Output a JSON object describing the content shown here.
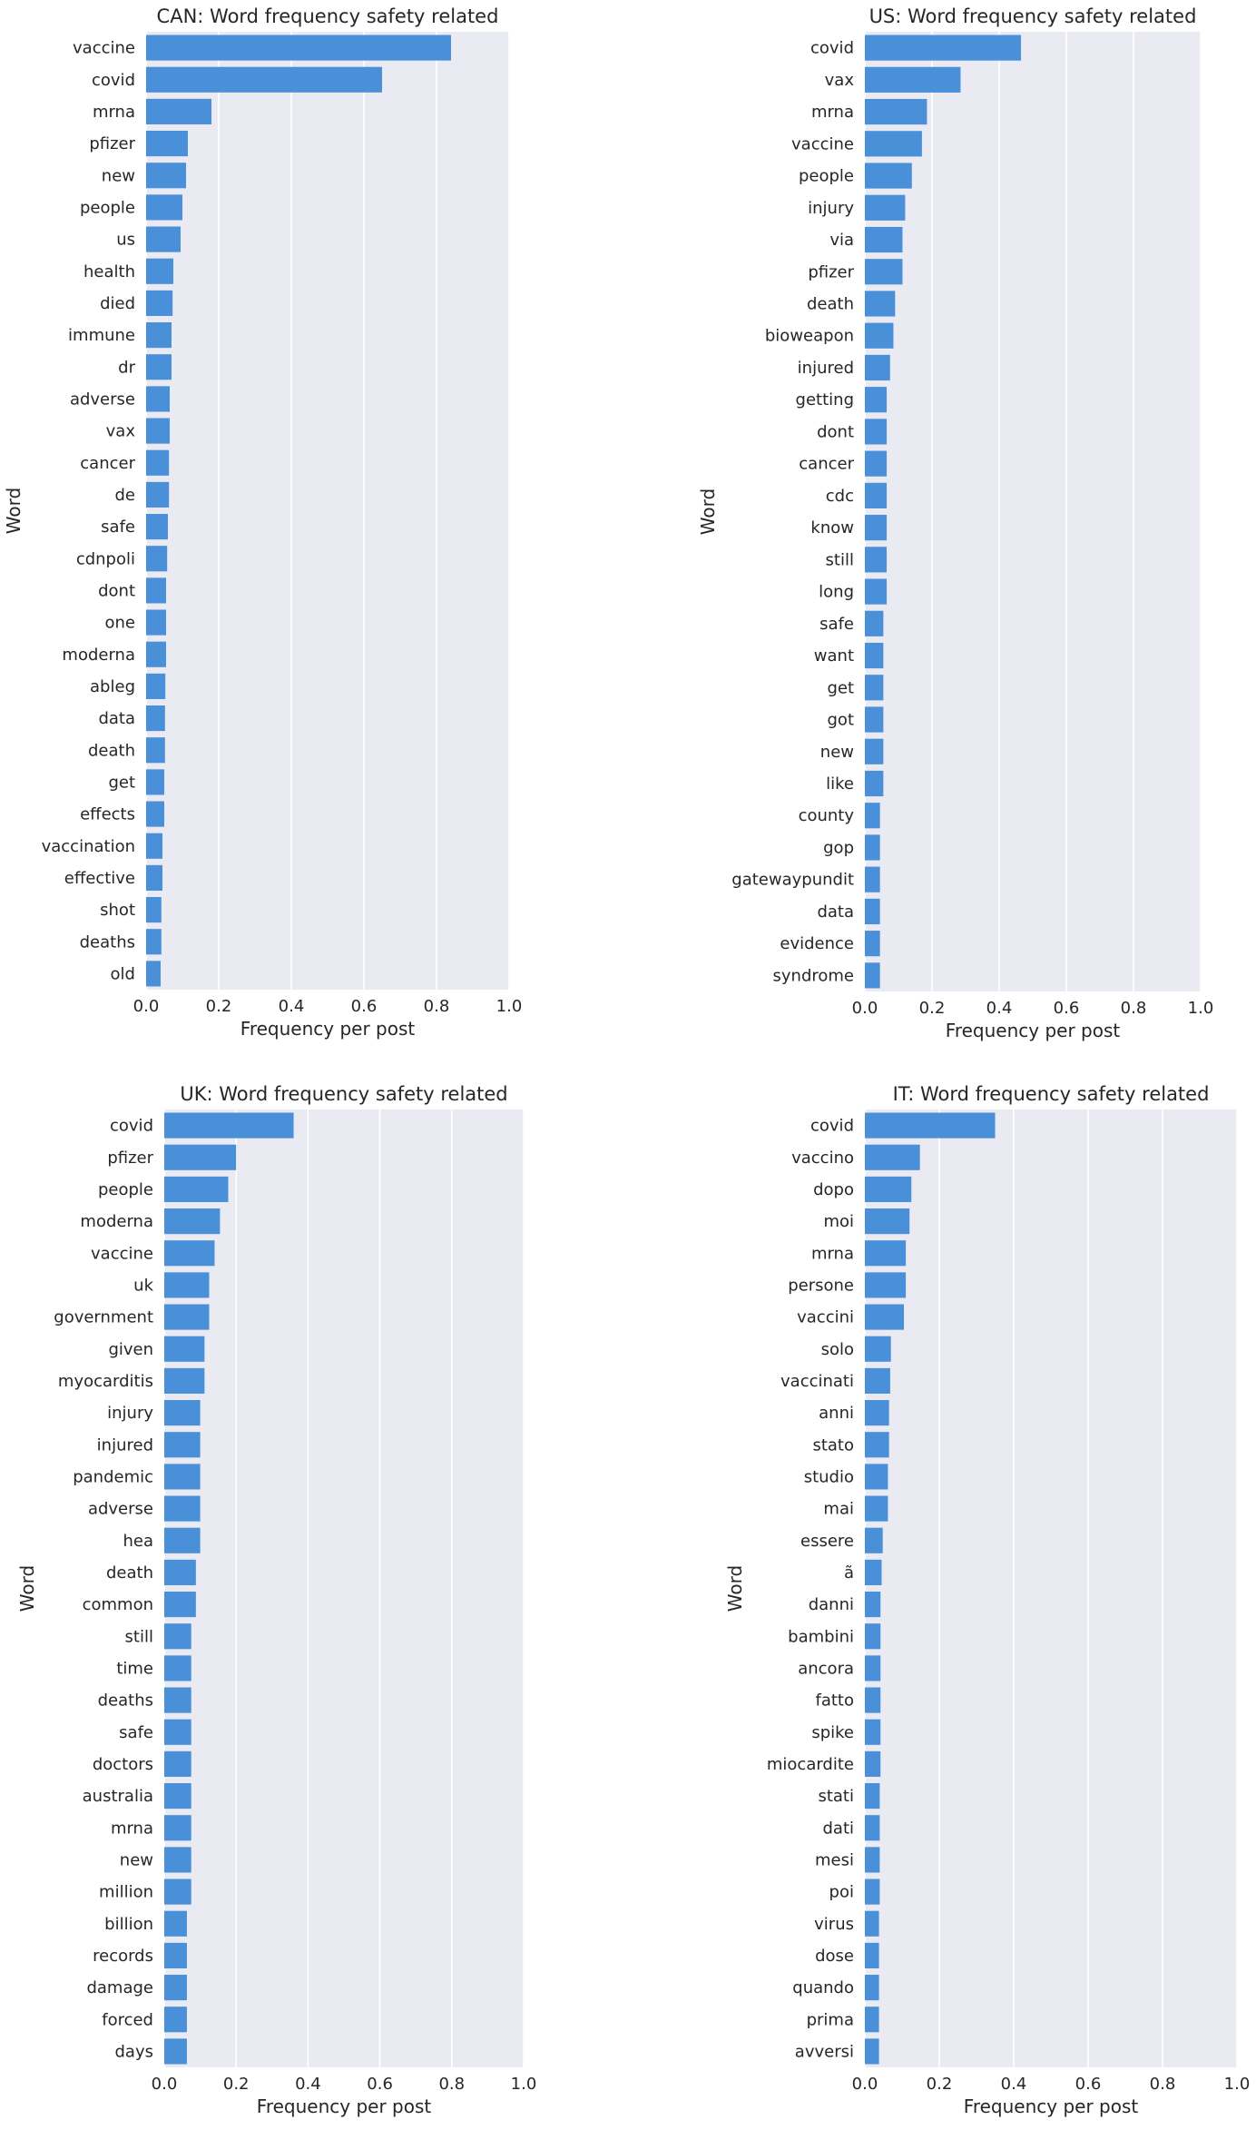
{
  "chart_data": [
    {
      "type": "bar",
      "orientation": "horizontal",
      "title": "CAN: Word frequency safety related",
      "xlabel": "Frequency per post",
      "ylabel": "Word",
      "xlim": [
        0,
        1
      ],
      "xticks": [
        "0.0",
        "0.2",
        "0.4",
        "0.6",
        "0.8",
        "1.0"
      ],
      "grid": true,
      "bar_color": "#4a90d9",
      "categories": [
        "vaccine",
        "covid",
        "mrna",
        "pfizer",
        "new",
        "people",
        "us",
        "health",
        "died",
        "immune",
        "dr",
        "adverse",
        "vax",
        "cancer",
        "de",
        "safe",
        "cdnpoli",
        "dont",
        "one",
        "moderna",
        "ableg",
        "data",
        "death",
        "get",
        "effects",
        "vaccination",
        "effective",
        "shot",
        "deaths",
        "old"
      ],
      "values": [
        0.84,
        0.65,
        0.18,
        0.115,
        0.11,
        0.1,
        0.095,
        0.075,
        0.073,
        0.07,
        0.07,
        0.065,
        0.065,
        0.063,
        0.063,
        0.06,
        0.058,
        0.055,
        0.055,
        0.055,
        0.053,
        0.052,
        0.052,
        0.05,
        0.05,
        0.045,
        0.045,
        0.042,
        0.042,
        0.04
      ]
    },
    {
      "type": "bar",
      "orientation": "horizontal",
      "title": "US: Word frequency safety related",
      "xlabel": "Frequency per post",
      "ylabel": "Word",
      "xlim": [
        0,
        1
      ],
      "xticks": [
        "0.0",
        "0.2",
        "0.4",
        "0.6",
        "0.8",
        "1.0"
      ],
      "grid": true,
      "bar_color": "#4a90d9",
      "categories": [
        "covid",
        "vax",
        "mrna",
        "vaccine",
        "people",
        "injury",
        "via",
        "pfizer",
        "death",
        "bioweapon",
        "injured",
        "getting",
        "dont",
        "cancer",
        "cdc",
        "know",
        "still",
        "long",
        "safe",
        "want",
        "get",
        "got",
        "new",
        "like",
        "county",
        "gop",
        "gatewaypundit",
        "data",
        "evidence",
        "syndrome"
      ],
      "values": [
        0.465,
        0.285,
        0.185,
        0.17,
        0.14,
        0.12,
        0.112,
        0.112,
        0.09,
        0.085,
        0.075,
        0.065,
        0.065,
        0.065,
        0.065,
        0.065,
        0.065,
        0.065,
        0.055,
        0.055,
        0.055,
        0.055,
        0.055,
        0.055,
        0.045,
        0.045,
        0.045,
        0.045,
        0.045,
        0.045
      ]
    },
    {
      "type": "bar",
      "orientation": "horizontal",
      "title": "UK: Word frequency safety related",
      "xlabel": "Frequency per post",
      "ylabel": "Word",
      "xlim": [
        0,
        1
      ],
      "xticks": [
        "0.0",
        "0.2",
        "0.4",
        "0.6",
        "0.8",
        "1.0"
      ],
      "grid": true,
      "bar_color": "#4a90d9",
      "categories": [
        "covid",
        "pfizer",
        "people",
        "moderna",
        "vaccine",
        "uk",
        "government",
        "given",
        "myocarditis",
        "injury",
        "injured",
        "pandemic",
        "adverse",
        "hea",
        "death",
        "common",
        "still",
        "time",
        "deaths",
        "safe",
        "doctors",
        "australia",
        "mrna",
        "new",
        "million",
        "billion",
        "records",
        "damage",
        "forced",
        "days"
      ],
      "values": [
        0.36,
        0.2,
        0.178,
        0.155,
        0.14,
        0.125,
        0.125,
        0.112,
        0.112,
        0.1,
        0.1,
        0.1,
        0.1,
        0.1,
        0.088,
        0.088,
        0.075,
        0.075,
        0.075,
        0.075,
        0.075,
        0.075,
        0.075,
        0.075,
        0.075,
        0.063,
        0.063,
        0.063,
        0.063,
        0.063
      ]
    },
    {
      "type": "bar",
      "orientation": "horizontal",
      "title": "IT: Word frequency safety related",
      "xlabel": "Frequency per post",
      "ylabel": "Word",
      "xlim": [
        0,
        1
      ],
      "xticks": [
        "0.0",
        "0.2",
        "0.4",
        "0.6",
        "0.8",
        "1.0"
      ],
      "grid": true,
      "bar_color": "#4a90d9",
      "categories": [
        "covid",
        "vaccino",
        "dopo",
        "moi",
        "mrna",
        "persone",
        "vaccini",
        "solo",
        "vaccinati",
        "anni",
        "stato",
        "studio",
        "mai",
        "essere",
        "ã",
        "danni",
        "bambini",
        "ancora",
        "fatto",
        "spike",
        "miocardite",
        "stati",
        "dati",
        "mesi",
        "poi",
        "virus",
        "dose",
        "quando",
        "prima",
        "avversi"
      ],
      "values": [
        0.35,
        0.148,
        0.125,
        0.12,
        0.11,
        0.11,
        0.105,
        0.07,
        0.068,
        0.065,
        0.065,
        0.062,
        0.062,
        0.048,
        0.045,
        0.042,
        0.042,
        0.042,
        0.042,
        0.042,
        0.042,
        0.04,
        0.04,
        0.04,
        0.04,
        0.038,
        0.038,
        0.038,
        0.038,
        0.038
      ]
    }
  ]
}
